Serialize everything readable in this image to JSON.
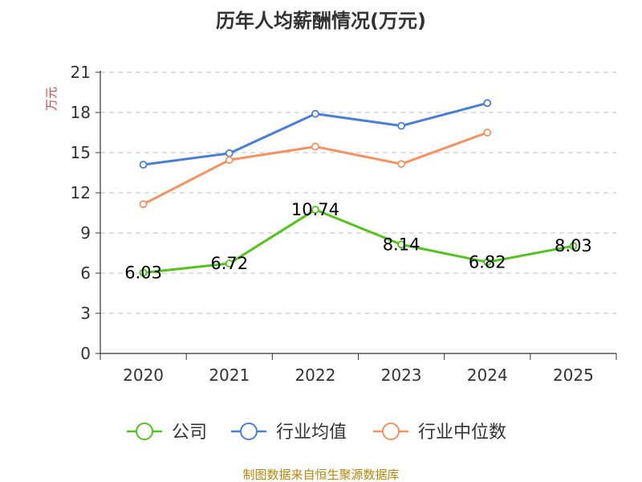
{
  "chart_data": {
    "type": "line",
    "title": "历年人均薪酬情况(万元)",
    "ylabel": "万元",
    "xlabel": "",
    "categories": [
      "2020",
      "2021",
      "2022",
      "2023",
      "2024",
      "2025"
    ],
    "ylim": [
      0,
      21
    ],
    "yticks": [
      0,
      3,
      6,
      9,
      12,
      15,
      18,
      21
    ],
    "grid": true,
    "legend_position": "bottom",
    "series": [
      {
        "name": "公司",
        "color": "#52c41a",
        "values": [
          6.03,
          6.72,
          10.74,
          8.14,
          6.82,
          8.03
        ],
        "labels": [
          "6.03",
          "6.72",
          "10.74",
          "8.14",
          "6.82",
          "8.03"
        ]
      },
      {
        "name": "行业均值",
        "color": "#4a7fd6",
        "values": [
          14.1,
          14.95,
          17.9,
          17.0,
          18.7,
          null
        ]
      },
      {
        "name": "行业中位数",
        "color": "#f59260",
        "values": [
          11.15,
          14.45,
          15.45,
          14.15,
          16.5,
          null
        ]
      }
    ]
  },
  "colors": {
    "axis": "#333333",
    "grid": "#cccccc",
    "unit": "#e0443a",
    "source": "#b8860b"
  },
  "source": "制图数据来自恒生聚源数据库"
}
